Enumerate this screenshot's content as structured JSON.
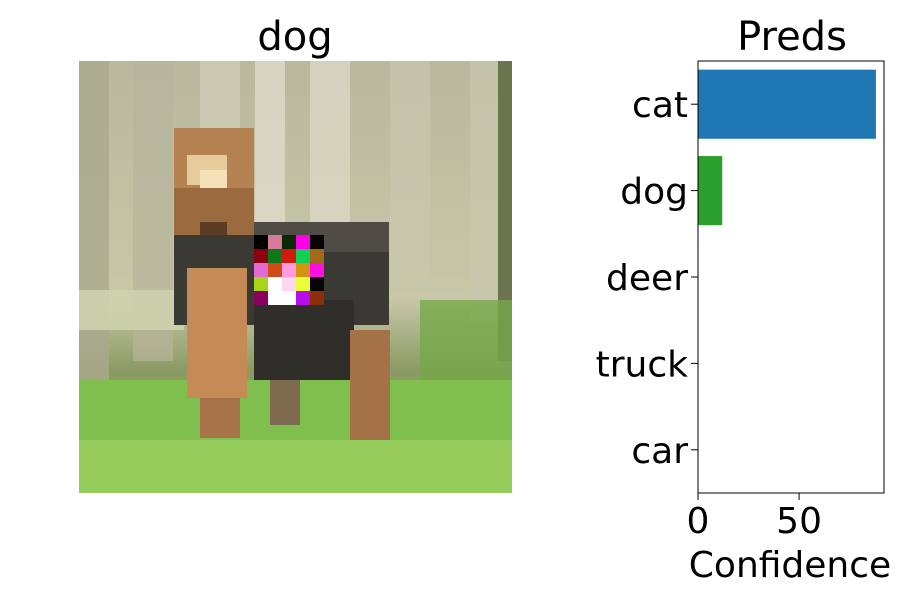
{
  "image_panel": {
    "title": "dog",
    "description_icon": "pixelated-dog-image-with-patch"
  },
  "chart_data": {
    "type": "bar",
    "orientation": "horizontal",
    "title": "Preds",
    "xlabel": "Confidence",
    "ylabel": "",
    "categories": [
      "cat",
      "dog",
      "deer",
      "truck",
      "car"
    ],
    "values": [
      88,
      12,
      0,
      0,
      0
    ],
    "bar_colors": [
      "#1f77b4",
      "#2ca02c",
      "#1f77b4",
      "#1f77b4",
      "#1f77b4"
    ],
    "xlim": [
      0,
      92
    ],
    "xticks": [
      0,
      50
    ],
    "grid": false
  }
}
